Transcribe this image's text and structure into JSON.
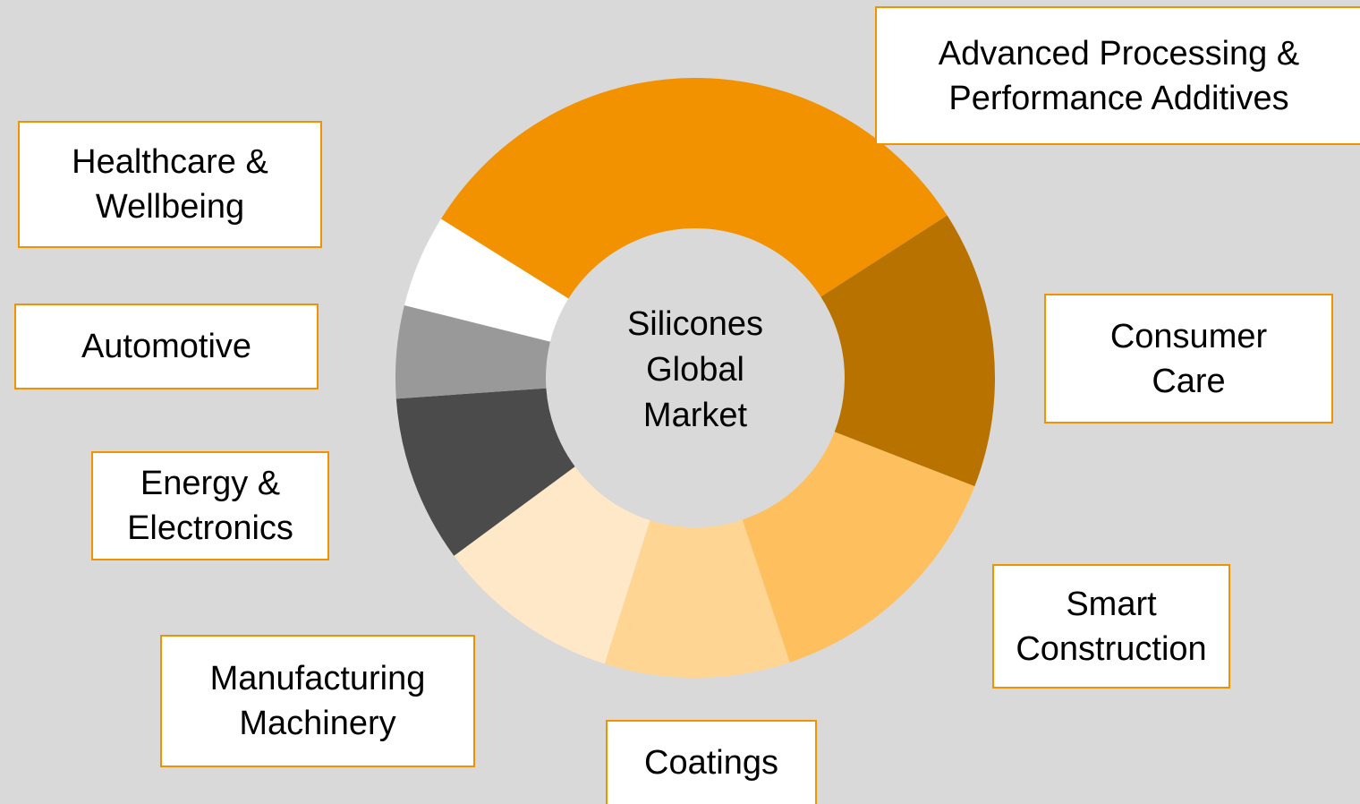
{
  "chart_data": {
    "type": "donut",
    "center_label": "Silicones Global Market",
    "categories": [
      "Advanced Processing & Performance Additives",
      "Consumer Care",
      "Smart Construction",
      "Coatings",
      "Manufacturing Machinery",
      "Energy & Electronics",
      "Automotive",
      "Healthcare & Wellbeing"
    ],
    "values": [
      32,
      15,
      14,
      10,
      10,
      9,
      5,
      5
    ],
    "colors": [
      "#f39200",
      "#b87200",
      "#fec05f",
      "#fed592",
      "#fee8c8",
      "#4b4b4b",
      "#999999",
      "#ffffff"
    ]
  }
}
